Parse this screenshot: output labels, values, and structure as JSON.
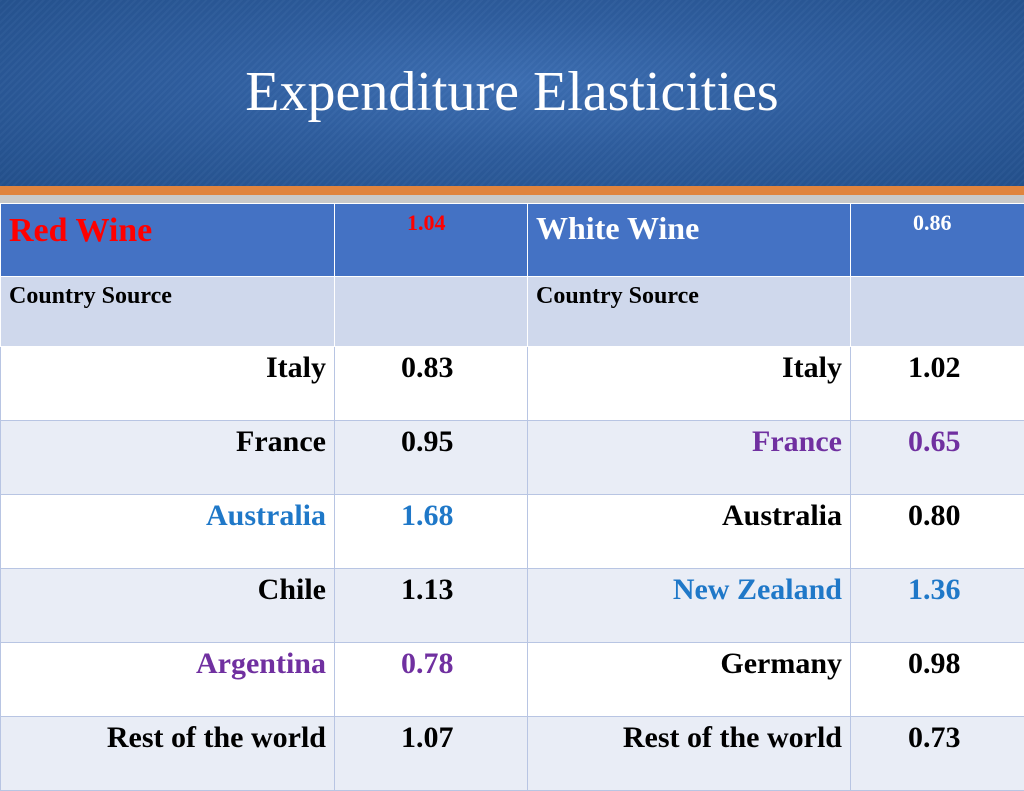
{
  "slide": {
    "title": "Expenditure Elasticities"
  },
  "colors": {
    "header_bg": "#2f5e9f",
    "accent_orange": "#e0843e",
    "table_header": "#4472c4",
    "red": "#ff0000",
    "blue": "#1f78c8",
    "purple": "#7030a0"
  },
  "table": {
    "red_wine": {
      "label": "Red  Wine",
      "value": "1.04"
    },
    "white_wine": {
      "label": "White Wine",
      "value": "0.86"
    },
    "country_source_label": "Country Source",
    "rows": [
      {
        "red_country": "Italy",
        "red_value": "0.83",
        "white_country": "Italy",
        "white_value": "1.02"
      },
      {
        "red_country": "France",
        "red_value": "0.95",
        "white_country": "France",
        "white_value": "0.65"
      },
      {
        "red_country": "Australia",
        "red_value": "1.68",
        "white_country": "Australia",
        "white_value": "0.80"
      },
      {
        "red_country": "Chile",
        "red_value": "1.13",
        "white_country": "New Zealand",
        "white_value": "1.36"
      },
      {
        "red_country": "Argentina",
        "red_value": "0.78",
        "white_country": "Germany",
        "white_value": "0.98"
      },
      {
        "red_country": "Rest of the world",
        "red_value": "1.07",
        "white_country": "Rest of the world",
        "white_value": "0.73"
      }
    ]
  }
}
